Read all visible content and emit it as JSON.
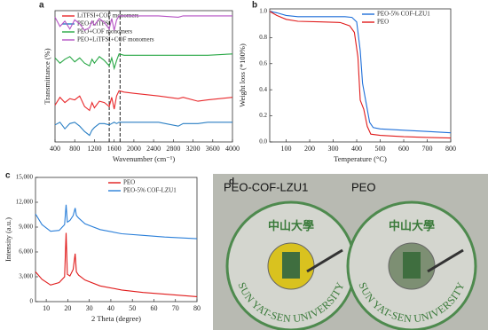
{
  "chart_data": [
    {
      "type": "line",
      "panel": "a",
      "x_label": "Wavenumber (cm⁻¹)",
      "y_label": "Transmittance (%)",
      "xlim": [
        400,
        4000
      ],
      "xticks": [
        400,
        800,
        1200,
        1600,
        2000,
        2400,
        2800,
        3200,
        3600,
        4000
      ],
      "ylim": [
        0,
        100
      ],
      "vlines": [
        1500,
        1720
      ],
      "legend": "upper-left",
      "x": [
        400,
        500,
        600,
        700,
        800,
        900,
        1000,
        1100,
        1150,
        1200,
        1300,
        1400,
        1500,
        1550,
        1600,
        1650,
        1700,
        1800,
        2000,
        2500,
        2900,
        3000,
        3300,
        3500,
        4000
      ],
      "series": [
        {
          "name": "LiTFSI+COF monomers",
          "color": "#e8282b",
          "values": [
            28,
            34,
            30,
            33,
            32,
            35,
            27,
            24,
            30,
            26,
            31,
            30,
            27,
            34,
            25,
            35,
            39,
            38,
            37,
            35,
            33,
            34,
            31,
            32,
            34
          ]
        },
        {
          "name": "PEO+LiTFSI",
          "color": "#2a7fc4",
          "values": [
            13,
            15,
            10,
            14,
            15,
            12,
            8,
            5,
            9,
            11,
            14,
            14,
            13,
            14,
            15,
            14,
            15,
            15,
            15,
            15,
            12,
            14,
            14,
            15,
            15
          ]
        },
        {
          "name": "PEO+COF monomers",
          "color": "#28a745",
          "values": [
            64,
            60,
            63,
            65,
            61,
            64,
            60,
            58,
            63,
            60,
            65,
            62,
            58,
            64,
            56,
            62,
            67,
            66,
            66,
            66,
            66,
            66,
            66,
            66,
            67
          ]
        },
        {
          "name": "PEO+LiTFSI+COF monomers",
          "color": "#b552c4",
          "values": [
            95,
            88,
            92,
            86,
            93,
            90,
            85,
            87,
            92,
            89,
            94,
            91,
            86,
            94,
            85,
            93,
            96,
            96,
            96,
            96,
            95,
            96,
            96,
            96,
            96
          ]
        }
      ]
    },
    {
      "type": "line",
      "panel": "b",
      "x_label": "Temperature (°C)",
      "y_label": "Weight loss (*100%)",
      "xlim": [
        30,
        800
      ],
      "xticks": [
        100,
        200,
        300,
        400,
        500,
        600,
        700,
        800
      ],
      "ylim": [
        0,
        1.02
      ],
      "yticks": [
        {
          "value": 0,
          "label": "0.0"
        },
        0.2,
        0.4,
        0.6,
        0.8,
        {
          "value": 1,
          "label": "1.0"
        }
      ],
      "legend": "upper-right",
      "series": [
        {
          "name": "PEO-5% COF-LZU1",
          "color": "#1e6fd9",
          "x": [
            30,
            60,
            100,
            150,
            250,
            350,
            380,
            400,
            415,
            425,
            440,
            455,
            470,
            500,
            600,
            700,
            800
          ],
          "values": [
            1,
            0.99,
            0.97,
            0.96,
            0.96,
            0.96,
            0.955,
            0.92,
            0.7,
            0.45,
            0.3,
            0.15,
            0.11,
            0.1,
            0.09,
            0.08,
            0.07
          ]
        },
        {
          "name": "PEO",
          "color": "#e01b1b",
          "x": [
            30,
            60,
            100,
            150,
            250,
            330,
            370,
            390,
            405,
            415,
            430,
            445,
            460,
            500,
            600,
            700,
            800
          ],
          "values": [
            1,
            0.97,
            0.94,
            0.925,
            0.92,
            0.915,
            0.89,
            0.84,
            0.65,
            0.32,
            0.25,
            0.12,
            0.06,
            0.05,
            0.04,
            0.035,
            0.03
          ]
        }
      ]
    },
    {
      "type": "line",
      "panel": "c",
      "x_label": "2 Theta (degree)",
      "y_label": "Intensity (a.u.)",
      "xlim": [
        5,
        80
      ],
      "xticks": [
        10,
        20,
        30,
        40,
        50,
        60,
        70,
        80
      ],
      "ylim": [
        0,
        15000
      ],
      "yticks": [
        0,
        {
          "value": 3000,
          "label": "3,000"
        },
        {
          "value": 6000,
          "label": "6,000"
        },
        {
          "value": 9000,
          "label": "9,000"
        },
        {
          "value": 12000,
          "label": "12,000"
        },
        {
          "value": 15000,
          "label": "15,000"
        }
      ],
      "legend": "upper-right",
      "series": [
        {
          "name": "PEO",
          "color": "#e01b1b",
          "x": [
            5,
            8,
            12,
            16,
            18.5,
            19.2,
            19.8,
            21,
            22.5,
            23.4,
            24,
            25,
            28,
            35,
            45,
            55,
            65,
            80
          ],
          "values": [
            3600,
            2700,
            2000,
            2300,
            3000,
            8300,
            3300,
            3100,
            3900,
            5800,
            3600,
            3200,
            2600,
            1900,
            1400,
            1100,
            900,
            600
          ]
        },
        {
          "name": "PEO-5% COF-LZU1",
          "color": "#2a7fd9",
          "x": [
            5,
            8,
            12,
            16,
            18.5,
            19.2,
            19.8,
            21,
            22.5,
            23.4,
            24,
            25,
            28,
            35,
            45,
            55,
            65,
            80
          ],
          "values": [
            10600,
            9300,
            8500,
            8600,
            9300,
            11700,
            9600,
            9800,
            10400,
            11300,
            10400,
            10100,
            9400,
            8700,
            8200,
            8000,
            7800,
            7600
          ]
        }
      ]
    },
    {
      "type": "photo",
      "panel": "d",
      "labels": [
        "PEO-COF-LZU1",
        "PEO"
      ],
      "emblem_text": "中山大學",
      "emblem_ring": "SUN YAT-SEN UNIVERSITY"
    }
  ]
}
